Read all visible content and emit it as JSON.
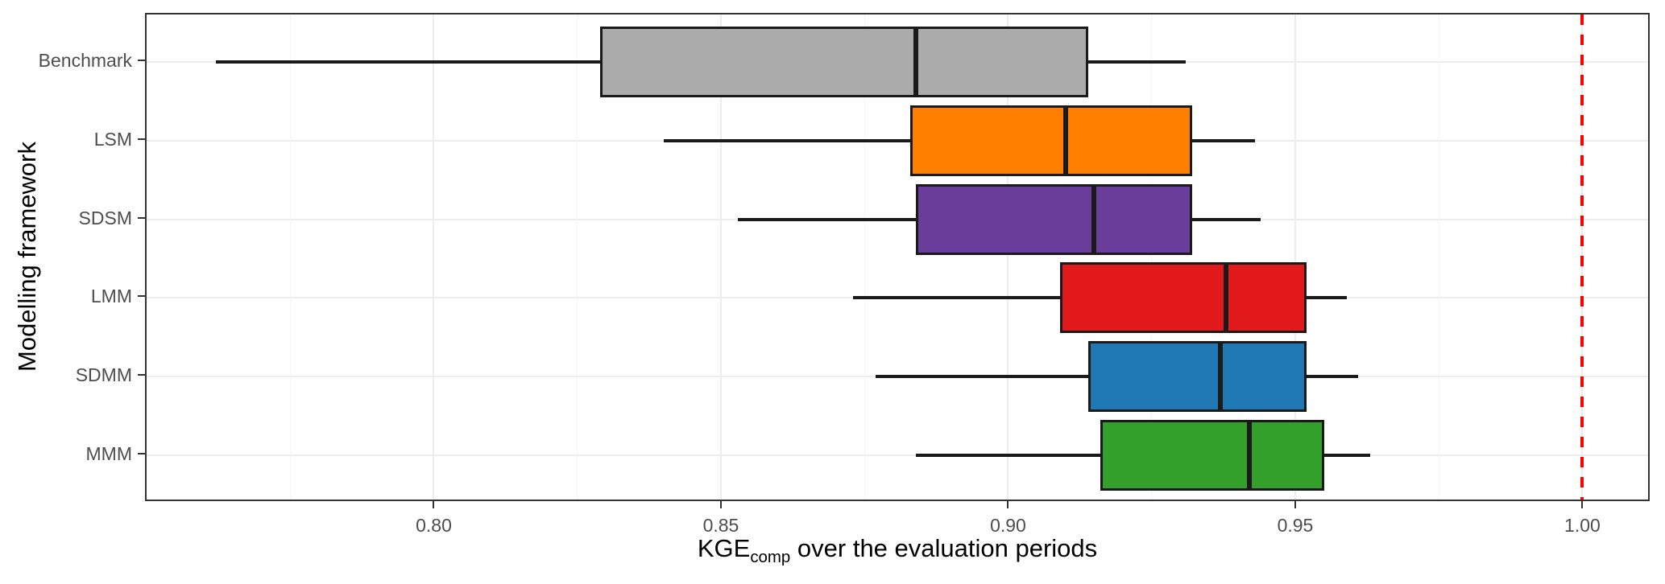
{
  "chart_data": {
    "type": "boxplot",
    "orientation": "horizontal",
    "xlabel": {
      "prefix": "KGE",
      "subscript": "comp",
      "suffix": " over the evaluation periods"
    },
    "ylabel": "Modelling framework",
    "xlim": [
      0.75,
      1.012
    ],
    "x_ticks": [
      0.8,
      0.85,
      0.9,
      0.95,
      1.0
    ],
    "x_tick_labels": [
      "0.80",
      "0.85",
      "0.90",
      "0.95",
      "1.00"
    ],
    "x_minor_ticks": [
      0.775,
      0.825,
      0.875,
      0.925,
      0.975
    ],
    "grid": true,
    "legend": "none",
    "categories": [
      "Benchmark",
      "LSM",
      "SDSM",
      "LMM",
      "SDMM",
      "MMM"
    ],
    "reference_line": {
      "x": 1.0,
      "color": "#ff0000",
      "style": "dashed"
    },
    "series": [
      {
        "name": "Benchmark",
        "color": "#ababab",
        "whisker_low": 0.762,
        "q1": 0.829,
        "median": 0.884,
        "q3": 0.914,
        "whisker_high": 0.931
      },
      {
        "name": "LSM",
        "color": "#ff7f00",
        "whisker_low": 0.84,
        "q1": 0.883,
        "median": 0.91,
        "q3": 0.932,
        "whisker_high": 0.943
      },
      {
        "name": "SDSM",
        "color": "#6a3d9a",
        "whisker_low": 0.853,
        "q1": 0.884,
        "median": 0.915,
        "q3": 0.932,
        "whisker_high": 0.944
      },
      {
        "name": "LMM",
        "color": "#e31a1c",
        "whisker_low": 0.873,
        "q1": 0.909,
        "median": 0.938,
        "q3": 0.952,
        "whisker_high": 0.959
      },
      {
        "name": "SDMM",
        "color": "#1f78b4",
        "whisker_low": 0.877,
        "q1": 0.914,
        "median": 0.937,
        "q3": 0.952,
        "whisker_high": 0.961
      },
      {
        "name": "MMM",
        "color": "#33a02c",
        "whisker_low": 0.884,
        "q1": 0.916,
        "median": 0.942,
        "q3": 0.955,
        "whisker_high": 0.963
      }
    ],
    "colors": {
      "box_border": "#1a1a1a",
      "median_line": "#1a1a1a",
      "grid_major": "#ededed",
      "grid_minor": "#f5f5f5",
      "panel_border": "#333333",
      "axis_text": "#4d4d4d",
      "title_text": "#000000",
      "background": "#ffffff"
    }
  }
}
